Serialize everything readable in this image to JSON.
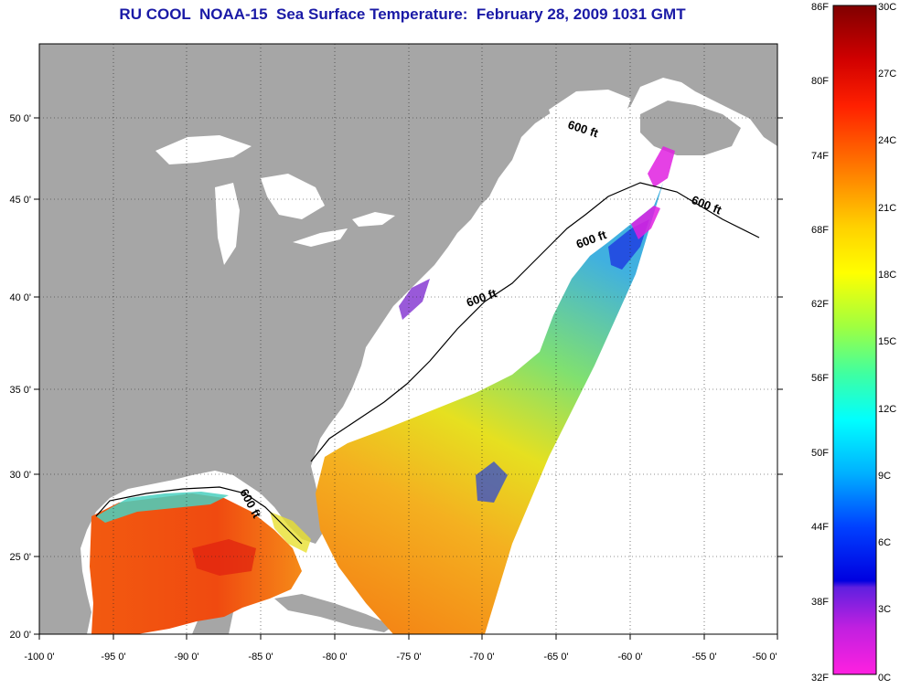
{
  "title": "RU COOL  NOAA-15  Sea Surface Temperature:  February 28, 2009 1031 GMT",
  "lon_labels": [
    "-100 0'",
    "-95 0'",
    "-90 0'",
    "-85 0'",
    "-80 0'",
    "-75 0'",
    "-70 0'",
    "-65 0'",
    "-60 0'",
    "-55 0'",
    "-50 0'"
  ],
  "lat_labels": [
    "50 0'",
    "45 0'",
    "40 0'",
    "35 0'",
    "30 0'",
    "25 0'",
    "20 0'"
  ],
  "contour_labels": [
    "600 ft",
    "600 ft",
    "600 ft",
    "600 ft",
    "600 ft"
  ],
  "colorbar": {
    "fahrenheit": [
      "86F",
      "80F",
      "74F",
      "68F",
      "62F",
      "56F",
      "50F",
      "44F",
      "38F",
      "32F"
    ],
    "celsius": [
      "30C",
      "27C",
      "24C",
      "21C",
      "18C",
      "15C",
      "12C",
      "9C",
      "6C",
      "3C",
      "0C"
    ]
  },
  "colors": {
    "land": "#a6a6a6",
    "title": "#1a1aa6"
  }
}
